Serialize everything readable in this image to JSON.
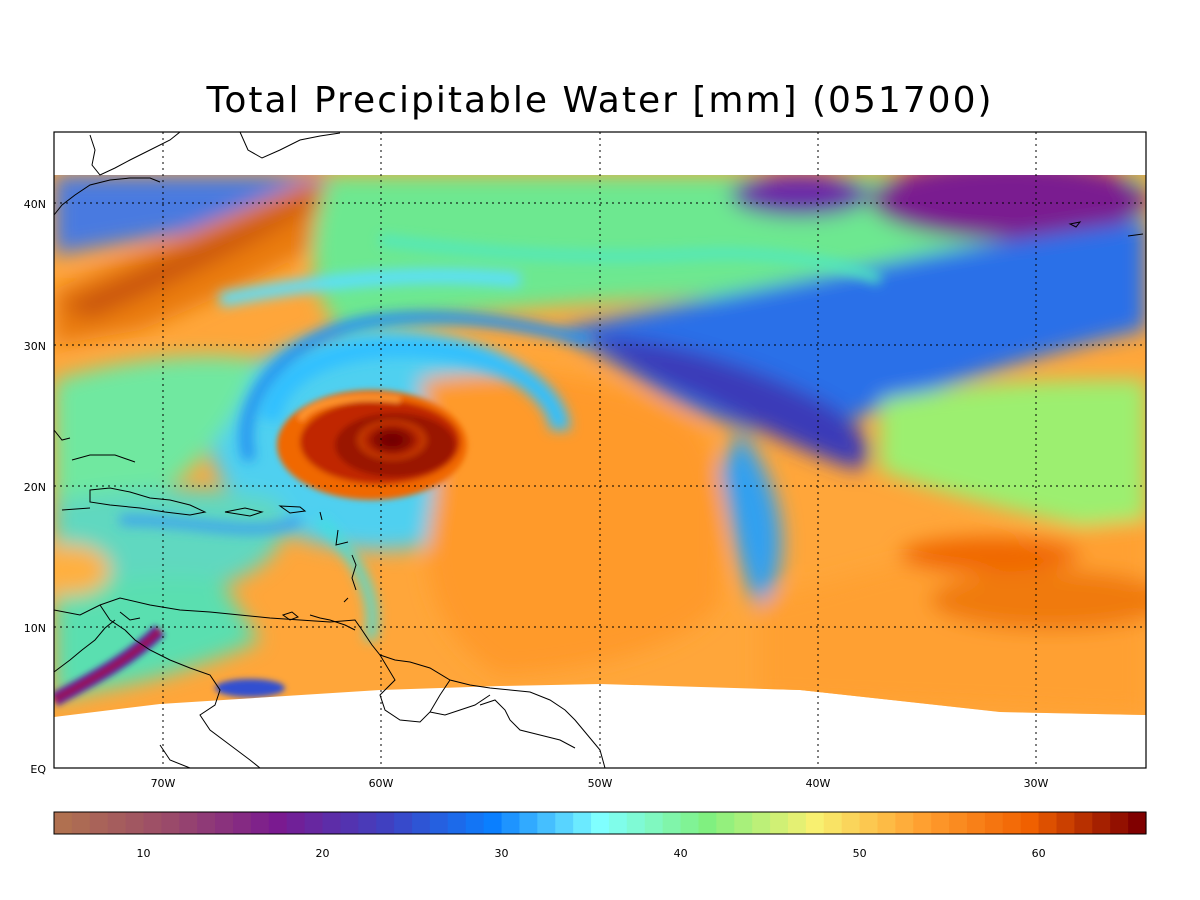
{
  "title": "Total Precipitable Water [mm]  (051700)",
  "map": {
    "lat_labels": [
      "40N",
      "30N",
      "20N",
      "10N",
      "EQ"
    ],
    "lon_labels": [
      "70W",
      "60W",
      "50W",
      "40W",
      "30W"
    ],
    "features": [
      "hurricane-eye",
      "moisture-bands",
      "coastlines"
    ]
  },
  "colorbar": {
    "min": 5,
    "max": 66,
    "tick_labels": [
      "10",
      "20",
      "30",
      "40",
      "50",
      "60"
    ],
    "stops": [
      "#b07050",
      "#9a4a6a",
      "#7a1a90",
      "#4040c0",
      "#0a7fff",
      "#7fffff",
      "#80f080",
      "#f8f070",
      "#ffa030",
      "#f06000",
      "#800000"
    ]
  }
}
